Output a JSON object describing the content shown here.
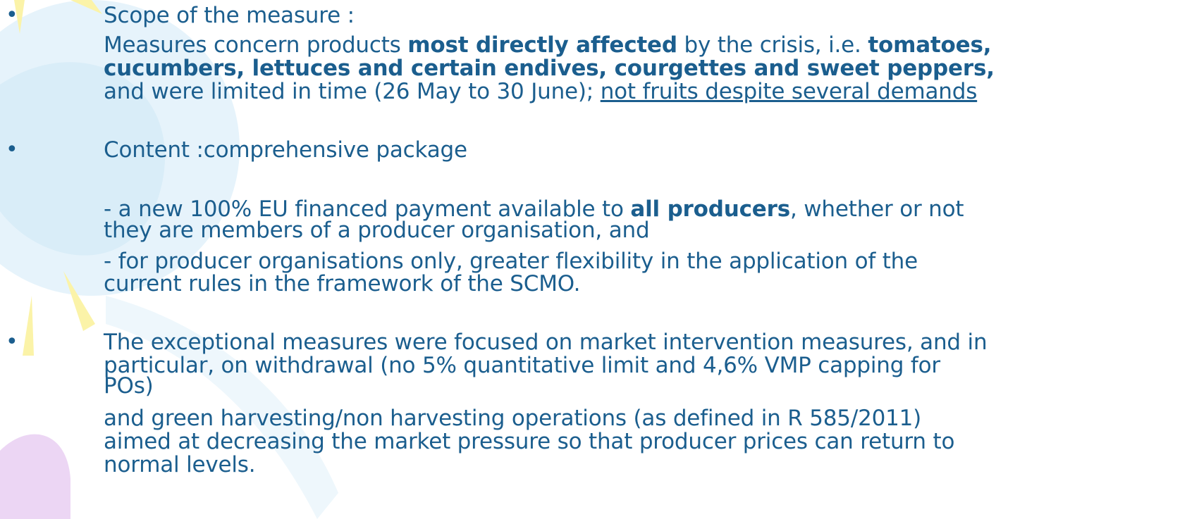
{
  "bullets": [
    {
      "lines": [
        [
          "Scope of the measure :"
        ],
        [
          "Measures concern products ",
          "most directly affected",
          " by the crisis, i.e. ",
          "tomatoes,"
        ],
        [
          "cucumbers, lettuces and certain endives, courgettes and sweet peppers,"
        ],
        [
          "and were limited in time (26 May to 30 June); ",
          "not fruits despite several demands"
        ]
      ]
    },
    {
      "lines": [
        [
          "Content :comprehensive package"
        ],
        [
          "- a new 100% EU financed payment available to ",
          "all producers",
          ", whether or not"
        ],
        [
          "they are members of a producer organisation, and"
        ],
        [
          "- for producer organisations only, greater flexibility in the application of the"
        ],
        [
          "current rules in the framework of the SCMO."
        ]
      ]
    },
    {
      "lines": [
        [
          "The exceptional measures were focused on market intervention measures, and in"
        ],
        [
          "particular, on withdrawal (no 5% quantitative limit and 4,6% VMP capping for"
        ],
        [
          "POs)"
        ],
        [
          "and green harvesting/non harvesting operations (as defined in R 585/2011)"
        ],
        [
          "aimed at decreasing the market pressure so that producer prices can return to"
        ],
        [
          "normal levels."
        ]
      ]
    }
  ]
}
